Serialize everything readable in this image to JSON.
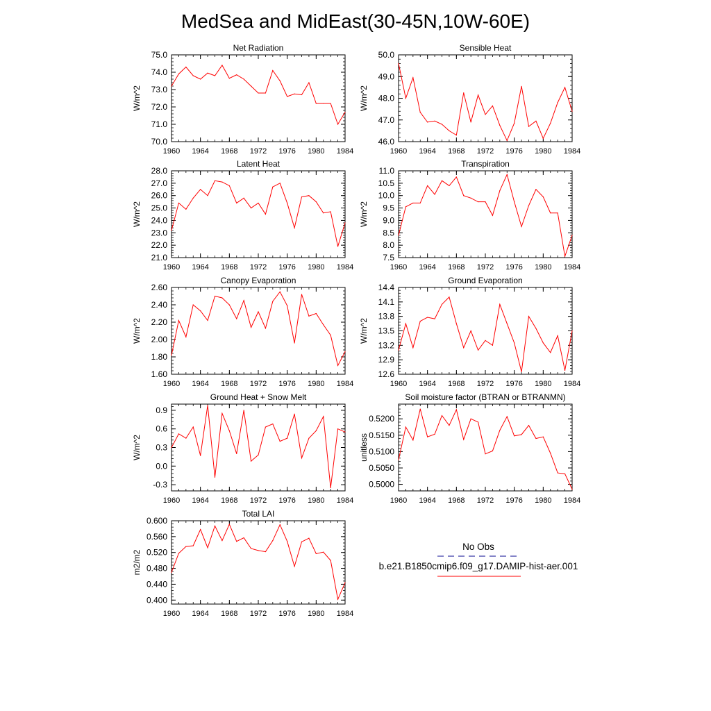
{
  "page": {
    "title": "MedSea and MidEast(30-45N,10W-60E)"
  },
  "legend": {
    "obs_label": "No Obs",
    "model_label": "b.e21.B1850cmip6.f09_g17.DAMIP-hist-aer.001",
    "obs_color": "#3a3aa8",
    "model_color": "#ff0000"
  },
  "chart_data": [
    {
      "type": "line",
      "title": "Net Radiation",
      "ylabel": "W/m^2",
      "xlim": [
        1960,
        1984
      ],
      "ylim": [
        70.0,
        75.0
      ],
      "xticks": [
        "1960",
        "1964",
        "1968",
        "1972",
        "1976",
        "1980",
        "1984"
      ],
      "yticks": [
        "70.0",
        "71.0",
        "72.0",
        "73.0",
        "74.0",
        "75.0"
      ],
      "x": [
        1960,
        1961,
        1962,
        1963,
        1964,
        1965,
        1966,
        1967,
        1968,
        1969,
        1970,
        1971,
        1972,
        1973,
        1974,
        1975,
        1976,
        1977,
        1978,
        1979,
        1980,
        1981,
        1982,
        1983,
        1984
      ],
      "series": [
        {
          "color": "#ff0000",
          "values": [
            73.2,
            73.9,
            74.3,
            73.8,
            73.6,
            73.95,
            73.8,
            74.4,
            73.65,
            73.85,
            73.6,
            73.2,
            72.8,
            72.8,
            74.1,
            73.5,
            72.6,
            72.75,
            72.7,
            73.4,
            72.2,
            72.2,
            72.2,
            71.0,
            71.7
          ]
        }
      ]
    },
    {
      "type": "line",
      "title": "Sensible Heat",
      "ylabel": "W/m^2",
      "xlim": [
        1960,
        1984
      ],
      "ylim": [
        46.0,
        50.0
      ],
      "xticks": [
        "1960",
        "1964",
        "1968",
        "1972",
        "1976",
        "1980",
        "1984"
      ],
      "yticks": [
        "46.0",
        "47.0",
        "48.0",
        "49.0",
        "50.0"
      ],
      "x": [
        1960,
        1961,
        1962,
        1963,
        1964,
        1965,
        1966,
        1967,
        1968,
        1969,
        1970,
        1971,
        1972,
        1973,
        1974,
        1975,
        1976,
        1977,
        1978,
        1979,
        1980,
        1981,
        1982,
        1983,
        1984
      ],
      "series": [
        {
          "color": "#ff0000",
          "values": [
            49.6,
            48.0,
            48.95,
            47.35,
            46.9,
            46.95,
            46.8,
            46.5,
            46.3,
            48.25,
            46.9,
            48.15,
            47.25,
            47.65,
            46.75,
            46.05,
            46.85,
            48.55,
            46.7,
            46.95,
            46.15,
            46.85,
            47.8,
            48.5,
            47.4
          ]
        }
      ]
    },
    {
      "type": "line",
      "title": "Latent Heat",
      "ylabel": "W/m^2",
      "xlim": [
        1960,
        1984
      ],
      "ylim": [
        21.0,
        28.0
      ],
      "xticks": [
        "1960",
        "1964",
        "1968",
        "1972",
        "1976",
        "1980",
        "1984"
      ],
      "yticks": [
        "21.0",
        "22.0",
        "23.0",
        "24.0",
        "25.0",
        "26.0",
        "27.0",
        "28.0"
      ],
      "x": [
        1960,
        1961,
        1962,
        1963,
        1964,
        1965,
        1966,
        1967,
        1968,
        1969,
        1970,
        1971,
        1972,
        1973,
        1974,
        1975,
        1976,
        1977,
        1978,
        1979,
        1980,
        1981,
        1982,
        1983,
        1984
      ],
      "series": [
        {
          "color": "#ff0000",
          "values": [
            23.2,
            25.4,
            24.9,
            25.8,
            26.5,
            26.0,
            27.2,
            27.1,
            26.8,
            25.4,
            25.8,
            25.0,
            25.4,
            24.5,
            26.7,
            27.0,
            25.4,
            23.4,
            25.9,
            26.0,
            25.5,
            24.6,
            24.7,
            21.9,
            23.8
          ]
        }
      ]
    },
    {
      "type": "line",
      "title": "Transpiration",
      "ylabel": "W/m^2",
      "xlim": [
        1960,
        1984
      ],
      "ylim": [
        7.5,
        11.0
      ],
      "xticks": [
        "1960",
        "1964",
        "1968",
        "1972",
        "1976",
        "1980",
        "1984"
      ],
      "yticks": [
        "7.5",
        "8.0",
        "8.5",
        "9.0",
        "9.5",
        "10.0",
        "10.5",
        "11.0"
      ],
      "x": [
        1960,
        1961,
        1962,
        1963,
        1964,
        1965,
        1966,
        1967,
        1968,
        1969,
        1970,
        1971,
        1972,
        1973,
        1974,
        1975,
        1976,
        1977,
        1978,
        1979,
        1980,
        1981,
        1982,
        1983,
        1984
      ],
      "series": [
        {
          "color": "#ff0000",
          "values": [
            8.4,
            9.55,
            9.7,
            9.7,
            10.4,
            10.05,
            10.6,
            10.4,
            10.75,
            10.0,
            9.9,
            9.75,
            9.75,
            9.2,
            10.2,
            10.85,
            9.75,
            8.75,
            9.6,
            10.25,
            9.95,
            9.3,
            9.3,
            7.55,
            8.4
          ]
        }
      ]
    },
    {
      "type": "line",
      "title": "Canopy Evaporation",
      "ylabel": "W/m^2",
      "xlim": [
        1960,
        1984
      ],
      "ylim": [
        1.6,
        2.6
      ],
      "xticks": [
        "1960",
        "1964",
        "1968",
        "1972",
        "1976",
        "1980",
        "1984"
      ],
      "yticks": [
        "1.60",
        "1.80",
        "2.00",
        "2.20",
        "2.40",
        "2.60"
      ],
      "x": [
        1960,
        1961,
        1962,
        1963,
        1964,
        1965,
        1966,
        1967,
        1968,
        1969,
        1970,
        1971,
        1972,
        1973,
        1974,
        1975,
        1976,
        1977,
        1978,
        1979,
        1980,
        1981,
        1982,
        1983,
        1984
      ],
      "series": [
        {
          "color": "#ff0000",
          "values": [
            1.82,
            2.22,
            2.03,
            2.4,
            2.33,
            2.22,
            2.5,
            2.48,
            2.4,
            2.24,
            2.45,
            2.14,
            2.32,
            2.13,
            2.44,
            2.55,
            2.39,
            1.96,
            2.52,
            2.27,
            2.3,
            2.17,
            2.05,
            1.7,
            1.86
          ]
        }
      ]
    },
    {
      "type": "line",
      "title": "Ground Evaporation",
      "ylabel": "W/m^2",
      "xlim": [
        1960,
        1984
      ],
      "ylim": [
        12.6,
        14.4
      ],
      "xticks": [
        "1960",
        "1964",
        "1968",
        "1972",
        "1976",
        "1980",
        "1984"
      ],
      "yticks": [
        "12.6",
        "12.9",
        "13.2",
        "13.5",
        "13.8",
        "14.1",
        "14.4"
      ],
      "x": [
        1960,
        1961,
        1962,
        1963,
        1964,
        1965,
        1966,
        1967,
        1968,
        1969,
        1970,
        1971,
        1972,
        1973,
        1974,
        1975,
        1976,
        1977,
        1978,
        1979,
        1980,
        1981,
        1982,
        1983,
        1984
      ],
      "series": [
        {
          "color": "#ff0000",
          "values": [
            13.1,
            13.65,
            13.15,
            13.7,
            13.78,
            13.75,
            14.05,
            14.2,
            13.65,
            13.15,
            13.5,
            13.1,
            13.3,
            13.2,
            14.05,
            13.65,
            13.25,
            12.65,
            13.8,
            13.55,
            13.25,
            13.05,
            13.4,
            12.68,
            13.5
          ]
        }
      ]
    },
    {
      "type": "line",
      "title": "Ground Heat + Snow Melt",
      "ylabel": "W/m^2",
      "xlim": [
        1960,
        1984
      ],
      "ylim": [
        -0.4,
        1.0
      ],
      "xticks": [
        "1960",
        "1964",
        "1968",
        "1972",
        "1976",
        "1980",
        "1984"
      ],
      "yticks": [
        "-0.3",
        "0.0",
        "0.3",
        "0.6",
        "0.9"
      ],
      "x": [
        1960,
        1961,
        1962,
        1963,
        1964,
        1965,
        1966,
        1967,
        1968,
        1969,
        1970,
        1971,
        1972,
        1973,
        1974,
        1975,
        1976,
        1977,
        1978,
        1979,
        1980,
        1981,
        1982,
        1983,
        1984
      ],
      "series": [
        {
          "color": "#ff0000",
          "values": [
            0.3,
            0.52,
            0.45,
            0.63,
            0.17,
            0.98,
            -0.18,
            0.85,
            0.57,
            0.2,
            0.9,
            0.08,
            0.18,
            0.63,
            0.68,
            0.4,
            0.45,
            0.84,
            0.13,
            0.45,
            0.57,
            0.8,
            -0.35,
            0.6,
            0.55
          ]
        }
      ]
    },
    {
      "type": "line",
      "title": "Soil moisture factor (BTRAN or BTRANMN)",
      "ylabel": "unitless",
      "xlim": [
        1960,
        1984
      ],
      "ylim": [
        0.498,
        0.5245
      ],
      "xticks": [
        "1960",
        "1964",
        "1968",
        "1972",
        "1976",
        "1980",
        "1984"
      ],
      "yticks": [
        "0.5000",
        "0.5050",
        "0.5100",
        "0.5150",
        "0.5200"
      ],
      "x": [
        1960,
        1961,
        1962,
        1963,
        1964,
        1965,
        1966,
        1967,
        1968,
        1969,
        1970,
        1971,
        1972,
        1973,
        1974,
        1975,
        1976,
        1977,
        1978,
        1979,
        1980,
        1981,
        1982,
        1983,
        1984
      ],
      "series": [
        {
          "color": "#ff0000",
          "values": [
            0.5075,
            0.5175,
            0.5135,
            0.523,
            0.5145,
            0.5153,
            0.521,
            0.518,
            0.5228,
            0.5137,
            0.52,
            0.519,
            0.5093,
            0.5102,
            0.5165,
            0.5207,
            0.5148,
            0.5152,
            0.518,
            0.514,
            0.5145,
            0.5095,
            0.5035,
            0.5032,
            0.4985
          ]
        }
      ]
    },
    {
      "type": "line",
      "title": "Total LAI",
      "ylabel": "m2/m2",
      "xlim": [
        1960,
        1984
      ],
      "ylim": [
        0.39,
        0.6
      ],
      "xticks": [
        "1960",
        "1964",
        "1968",
        "1972",
        "1976",
        "1980",
        "1984"
      ],
      "yticks": [
        "0.400",
        "0.440",
        "0.480",
        "0.520",
        "0.560",
        "0.600"
      ],
      "x": [
        1960,
        1961,
        1962,
        1963,
        1964,
        1965,
        1966,
        1967,
        1968,
        1969,
        1970,
        1971,
        1972,
        1973,
        1974,
        1975,
        1976,
        1977,
        1978,
        1979,
        1980,
        1981,
        1982,
        1983,
        1984
      ],
      "series": [
        {
          "color": "#ff0000",
          "values": [
            0.47,
            0.518,
            0.535,
            0.537,
            0.578,
            0.532,
            0.587,
            0.55,
            0.591,
            0.548,
            0.557,
            0.53,
            0.525,
            0.522,
            0.55,
            0.59,
            0.548,
            0.485,
            0.547,
            0.556,
            0.517,
            0.521,
            0.5,
            0.402,
            0.444
          ]
        }
      ]
    }
  ]
}
